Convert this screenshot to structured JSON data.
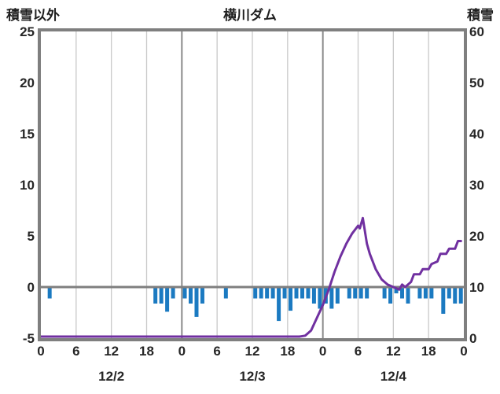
{
  "chart_data": {
    "type": "bar",
    "title": "横川ダム",
    "left_axis": {
      "label": "積雪以外",
      "min": -5,
      "max": 25,
      "ticks": [
        25,
        20,
        15,
        10,
        5,
        0,
        -5
      ]
    },
    "right_axis": {
      "label": "積雪",
      "min": 0,
      "max": 60,
      "ticks": [
        60,
        50,
        40,
        30,
        20,
        10,
        0
      ]
    },
    "x_axis": {
      "hours_span": 72,
      "tick_interval": 6,
      "hour_labels": [
        "0",
        "6",
        "12",
        "18",
        "0",
        "6",
        "12",
        "18",
        "0",
        "6",
        "12",
        "18",
        "0"
      ],
      "date_labels": [
        "12/2",
        "12/3",
        "12/4"
      ],
      "day_boundaries": [
        24,
        48
      ]
    },
    "series": [
      {
        "name": "積雪以外",
        "type": "bar",
        "axis": "left",
        "direction": "down",
        "color": "#1b7ac1",
        "values": [
          0,
          1,
          0,
          0,
          0,
          0,
          0,
          0,
          0,
          0,
          0,
          0,
          0,
          0,
          0,
          0,
          0,
          0,
          0,
          1.5,
          1.5,
          2.3,
          1,
          0,
          1,
          1.5,
          2.8,
          1.5,
          0,
          0,
          0,
          1,
          0,
          0,
          0,
          0,
          1,
          1,
          1,
          1,
          3.2,
          1,
          2.2,
          1,
          1,
          1,
          1.5,
          2,
          1.5,
          2,
          1.5,
          0,
          1,
          1,
          1,
          1,
          0,
          0,
          1,
          1.5,
          0.5,
          1,
          1.5,
          0,
          1,
          1,
          1,
          0,
          2.5,
          1,
          1.5,
          1.5
        ]
      },
      {
        "name": "積雪",
        "type": "line",
        "axis": "right",
        "color": "#7030a0",
        "points": [
          [
            0,
            0
          ],
          [
            44,
            0
          ],
          [
            45,
            0.5
          ],
          [
            46,
            1.5
          ],
          [
            47,
            4
          ],
          [
            48,
            6.5
          ],
          [
            49,
            9.5
          ],
          [
            50,
            13
          ],
          [
            51,
            16
          ],
          [
            52,
            18.5
          ],
          [
            53,
            20.5
          ],
          [
            54,
            22
          ],
          [
            54.3,
            21.5
          ],
          [
            54.8,
            23.5
          ],
          [
            55.5,
            18.5
          ],
          [
            56,
            16.5
          ],
          [
            57,
            13.5
          ],
          [
            58,
            11.5
          ],
          [
            59,
            10.5
          ],
          [
            60,
            10
          ],
          [
            61,
            9.5
          ],
          [
            61.5,
            10.5
          ],
          [
            62,
            10
          ],
          [
            63,
            11
          ],
          [
            63.5,
            12.5
          ],
          [
            64.5,
            12.5
          ],
          [
            65,
            13.5
          ],
          [
            66,
            13.5
          ],
          [
            66.5,
            14.5
          ],
          [
            67.5,
            15
          ],
          [
            68,
            16.5
          ],
          [
            69,
            16.5
          ],
          [
            69.5,
            17.5
          ],
          [
            70.5,
            17.5
          ],
          [
            71,
            19
          ],
          [
            71.5,
            19
          ]
        ]
      }
    ],
    "colors": {
      "frame": "#7f7f7f",
      "grid_minor": "#c9c9c9",
      "grid_day": "#8a8a8a",
      "zero_line": "#7f7f7f",
      "bar": "#1b7ac1",
      "line": "#7030a0",
      "text": "#262626",
      "background": "#ffffff"
    },
    "grid": "vertical-only",
    "legend_position": "none"
  }
}
